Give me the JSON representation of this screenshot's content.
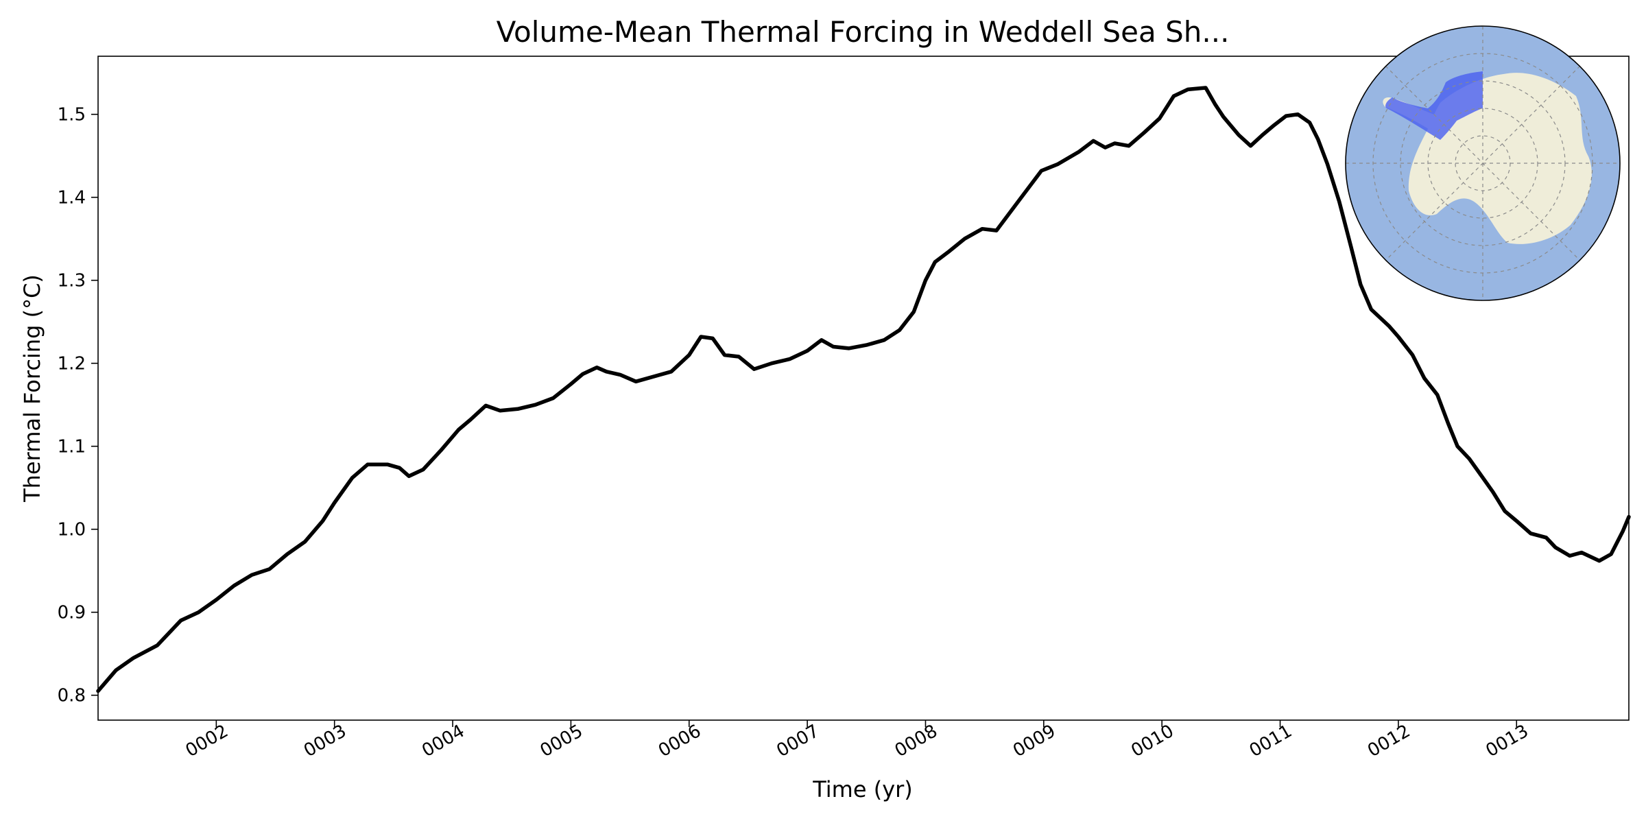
{
  "chart_data": {
    "type": "line",
    "title": "Volume-Mean Thermal Forcing in Weddell Sea Sh...",
    "xlabel": "Time (yr)",
    "ylabel": "Thermal Forcing (°C)",
    "xlim": [
      1.0,
      13.95
    ],
    "ylim": [
      0.77,
      1.57
    ],
    "xticks": [
      2,
      3,
      4,
      5,
      6,
      7,
      8,
      9,
      10,
      11,
      12,
      13
    ],
    "xtick_labels": [
      "0002",
      "0003",
      "0004",
      "0005",
      "0006",
      "0007",
      "0008",
      "0009",
      "0010",
      "0011",
      "0012",
      "0013"
    ],
    "yticks": [
      0.8,
      0.9,
      1.0,
      1.1,
      1.2,
      1.3,
      1.4,
      1.5
    ],
    "ytick_labels": [
      "0.8",
      "0.9",
      "1.0",
      "1.1",
      "1.2",
      "1.3",
      "1.4",
      "1.5"
    ],
    "grid": false,
    "series": [
      {
        "color": "#000000",
        "x": [
          1.0,
          1.15,
          1.3,
          1.5,
          1.7,
          1.85,
          2.0,
          2.15,
          2.3,
          2.45,
          2.6,
          2.75,
          2.9,
          3.0,
          3.15,
          3.28,
          3.45,
          3.55,
          3.63,
          3.75,
          3.9,
          4.05,
          4.15,
          4.28,
          4.4,
          4.55,
          4.7,
          4.85,
          5.0,
          5.1,
          5.22,
          5.3,
          5.42,
          5.55,
          5.75,
          5.85,
          6.0,
          6.1,
          6.2,
          6.3,
          6.42,
          6.55,
          6.7,
          6.85,
          7.0,
          7.12,
          7.22,
          7.35,
          7.5,
          7.65,
          7.78,
          7.9,
          8.0,
          8.08,
          8.2,
          8.33,
          8.48,
          8.6,
          8.8,
          8.98,
          9.12,
          9.3,
          9.42,
          9.52,
          9.6,
          9.72,
          9.85,
          9.98,
          10.1,
          10.22,
          10.37,
          10.45,
          10.52,
          10.65,
          10.75,
          10.85,
          10.95,
          11.05,
          11.15,
          11.25,
          11.32,
          11.4,
          11.5,
          11.6,
          11.68,
          11.77,
          11.92,
          12.0,
          12.12,
          12.22,
          12.33,
          12.42,
          12.5,
          12.6,
          12.7,
          12.8,
          12.9,
          13.0,
          13.12,
          13.25,
          13.33,
          13.45,
          13.55,
          13.7,
          13.8,
          13.9,
          13.95
        ],
        "y": [
          0.805,
          0.83,
          0.845,
          0.86,
          0.89,
          0.9,
          0.915,
          0.932,
          0.945,
          0.952,
          0.97,
          0.985,
          1.01,
          1.032,
          1.062,
          1.078,
          1.078,
          1.074,
          1.064,
          1.072,
          1.095,
          1.12,
          1.132,
          1.149,
          1.143,
          1.145,
          1.15,
          1.158,
          1.175,
          1.187,
          1.195,
          1.19,
          1.186,
          1.178,
          1.186,
          1.19,
          1.21,
          1.232,
          1.23,
          1.21,
          1.208,
          1.193,
          1.2,
          1.205,
          1.215,
          1.228,
          1.22,
          1.218,
          1.222,
          1.228,
          1.24,
          1.262,
          1.3,
          1.322,
          1.335,
          1.35,
          1.362,
          1.36,
          1.398,
          1.432,
          1.44,
          1.455,
          1.468,
          1.46,
          1.465,
          1.462,
          1.478,
          1.495,
          1.522,
          1.53,
          1.532,
          1.512,
          1.497,
          1.475,
          1.462,
          1.475,
          1.487,
          1.498,
          1.5,
          1.49,
          1.47,
          1.44,
          1.395,
          1.34,
          1.295,
          1.265,
          1.245,
          1.232,
          1.21,
          1.182,
          1.162,
          1.128,
          1.1,
          1.085,
          1.065,
          1.045,
          1.022,
          1.01,
          0.995,
          0.99,
          0.978,
          0.968,
          0.972,
          0.962,
          0.97,
          0.998,
          1.015
        ]
      }
    ]
  },
  "inset_map": {
    "ocean_color": "#98b6e2",
    "land_color": "#efedd9",
    "region_color": "#4a5ff0"
  }
}
